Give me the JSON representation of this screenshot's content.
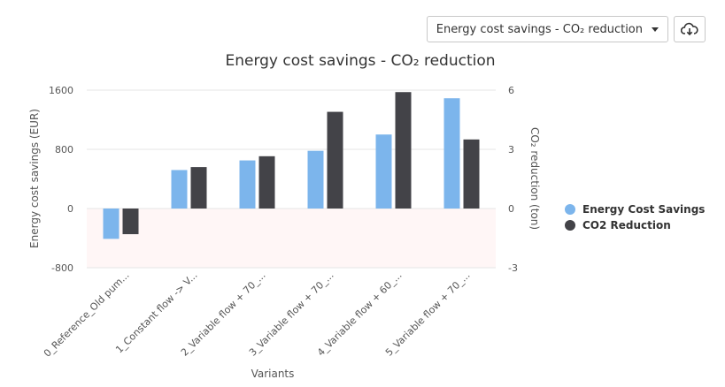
{
  "toolbar": {
    "chart_selector_label": "Energy cost savings - CO₂ reduction",
    "download_icon": "cloud-download-icon"
  },
  "colors": {
    "energy": "#7cb5ec",
    "co2": "#434348",
    "plotband": "#fff6f6",
    "grid": "#e6e6e6"
  },
  "chart_data": {
    "type": "bar",
    "title": "Energy cost savings - CO₂ reduction",
    "xlabel": "Variants",
    "ylabel": "Energy cost savings (EUR)",
    "y2label": "CO₂ reduction (ton)",
    "ylim": [
      -800,
      1600
    ],
    "yticks": [
      -800,
      0,
      800,
      1600
    ],
    "ylim2": [
      -3,
      6
    ],
    "yticks2": [
      -3,
      0,
      3,
      6
    ],
    "categories": [
      "0_Reference_Old pum...",
      "1_Constant flow -> V...",
      "2_Variable flow + 70_...",
      "3_Variable flow + 70_...",
      "4_Variable flow + 60_...",
      "5_Variable flow + 70_..."
    ],
    "series": [
      {
        "name": "Energy Cost Savings",
        "axis": "left",
        "values": [
          -410,
          520,
          650,
          780,
          1000,
          1490
        ]
      },
      {
        "name": "CO2 Reduction",
        "axis": "right",
        "values": [
          -1.3,
          2.1,
          2.65,
          4.9,
          5.9,
          3.5
        ]
      }
    ],
    "legend_position": "right"
  }
}
